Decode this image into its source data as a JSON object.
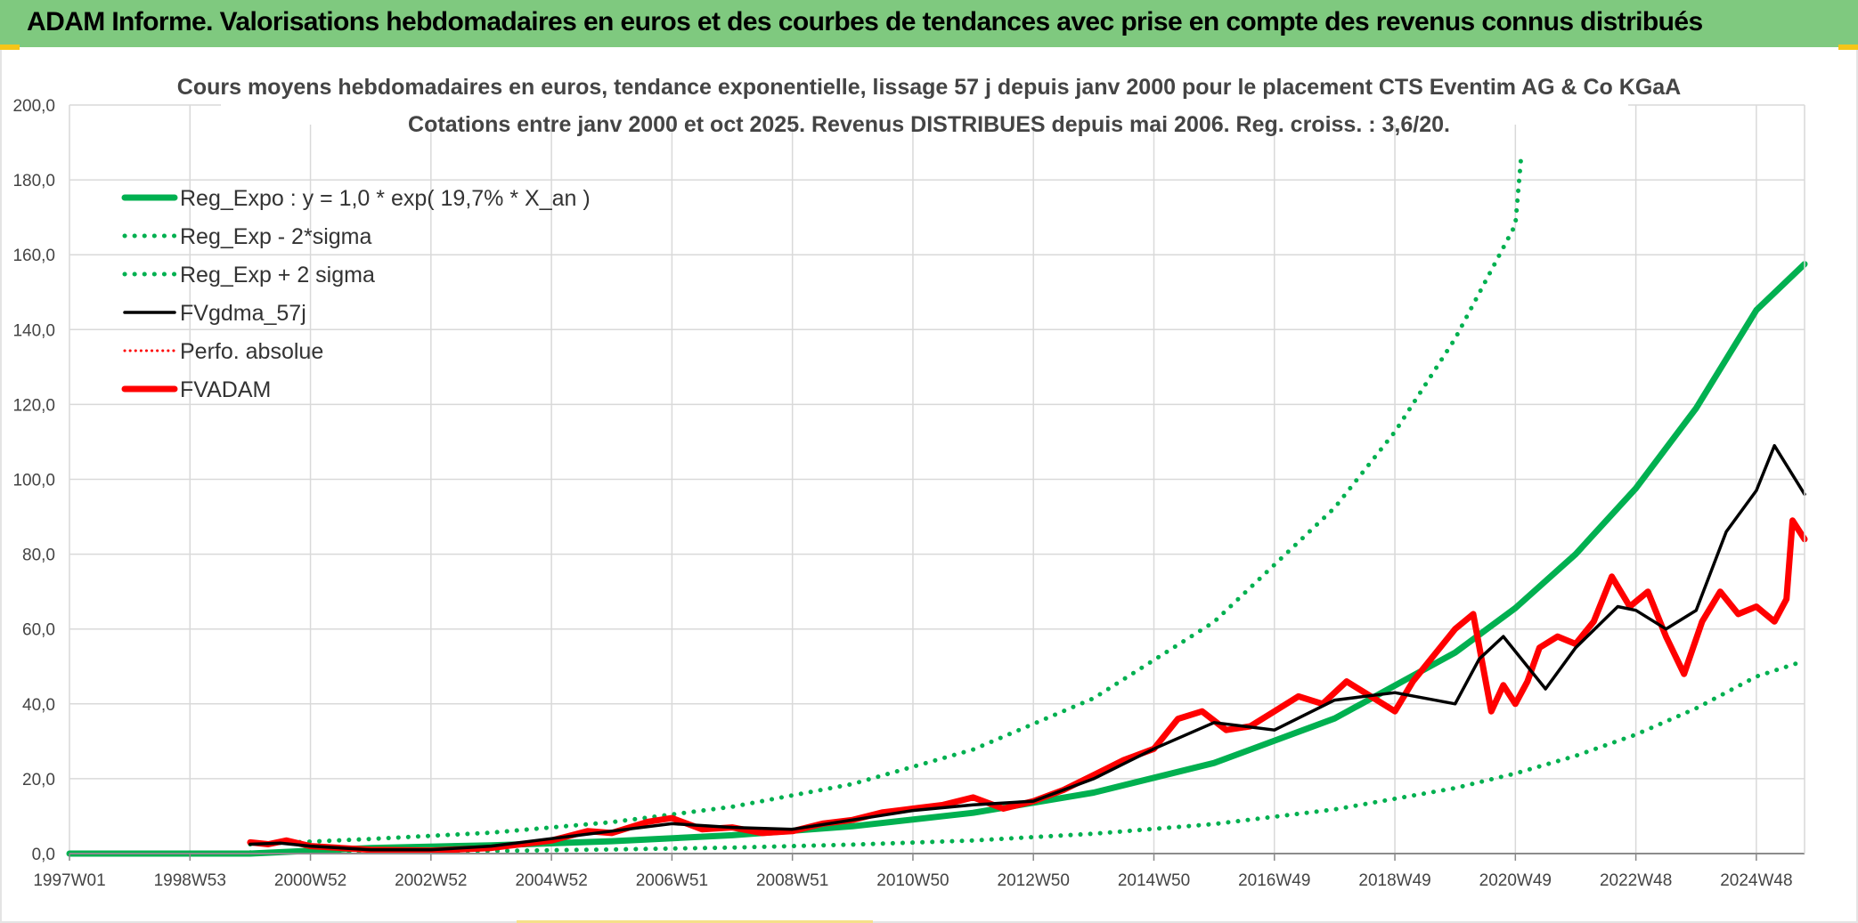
{
  "header": {
    "title": "ADAM Informe. Valorisations hebdomadaires en euros et des courbes de tendances avec prise en compte des revenus connus distribués"
  },
  "colors": {
    "header_bg": "#7fc97f",
    "green": "#00b050",
    "red": "#ff0000",
    "black": "#000000",
    "grid": "#d9d9d9"
  },
  "chart_data": {
    "type": "line",
    "title_line1": "Cours moyens hebdomadaires en euros, tendance exponentielle, lissage 57 j depuis janv 2000 pour le placement CTS Eventim AG & Co KGaA",
    "title_line2": "Cotations entre janv 2000 et oct 2025. Revenus DISTRIBUES depuis mai 2006. Reg. croiss. : 3,6/20.",
    "ylim": [
      0,
      200
    ],
    "yticks": [
      "0,0",
      "20,0",
      "40,0",
      "60,0",
      "80,0",
      "100,0",
      "120,0",
      "140,0",
      "160,0",
      "180,0",
      "200,0"
    ],
    "xlim": [
      1997.0,
      2025.8
    ],
    "xticks": [
      {
        "label": "1997W01",
        "x": 1997.0
      },
      {
        "label": "1998W53",
        "x": 1999.0
      },
      {
        "label": "2000W52",
        "x": 2001.0
      },
      {
        "label": "2002W52",
        "x": 2003.0
      },
      {
        "label": "2004W52",
        "x": 2005.0
      },
      {
        "label": "2006W51",
        "x": 2007.0
      },
      {
        "label": "2008W51",
        "x": 2009.0
      },
      {
        "label": "2010W50",
        "x": 2011.0
      },
      {
        "label": "2012W50",
        "x": 2013.0
      },
      {
        "label": "2014W50",
        "x": 2015.0
      },
      {
        "label": "2016W49",
        "x": 2017.0
      },
      {
        "label": "2018W49",
        "x": 2019.0
      },
      {
        "label": "2020W49",
        "x": 2021.0
      },
      {
        "label": "2022W48",
        "x": 2023.0
      },
      {
        "label": "2024W48",
        "x": 2025.0
      }
    ],
    "legend": {
      "position": "top-left",
      "entries": [
        {
          "label": "Reg_Expo : y = 1,0 * exp( 19,7% *  X_an )",
          "color": "#00b050",
          "style": "solid-thick"
        },
        {
          "label": "Reg_Exp - 2*sigma",
          "color": "#00b050",
          "style": "dotted"
        },
        {
          "label": "Reg_Exp + 2 sigma",
          "color": "#00b050",
          "style": "dotted"
        },
        {
          "label": "FVgdma_57j",
          "color": "#000000",
          "style": "solid"
        },
        {
          "label": "Perfo. absolue",
          "color": "#ff0000",
          "style": "dotted-thin"
        },
        {
          "label": "FVADAM",
          "color": "#ff0000",
          "style": "solid-thick"
        }
      ]
    },
    "series": [
      {
        "name": "Reg_Expo : y = 1,0 * exp( 19,7% *  X_an )",
        "x": [
          1997.0,
          2000.0,
          2002.0,
          2004.0,
          2006.0,
          2008.0,
          2010.0,
          2012.0,
          2014.0,
          2016.0,
          2018.0,
          2020.0,
          2021.0,
          2022.0,
          2023.0,
          2024.0,
          2025.0,
          2025.8
        ],
        "y": [
          0,
          0,
          1.5,
          2.2,
          3.3,
          4.9,
          7.3,
          10.9,
          16.3,
          24.2,
          36.1,
          53.7,
          65.6,
          80.0,
          97.6,
          119.0,
          145.2,
          157.5
        ]
      },
      {
        "name": "Reg_Exp - 2*sigma",
        "x": [
          2000.0,
          2002.0,
          2004.0,
          2006.0,
          2008.0,
          2010.0,
          2012.0,
          2014.0,
          2016.0,
          2018.0,
          2020.0,
          2021.0,
          2022.0,
          2023.0,
          2024.0,
          2025.0,
          2025.8
        ],
        "y": [
          0.3,
          0.5,
          0.7,
          1.1,
          1.6,
          2.4,
          3.5,
          5.3,
          7.9,
          11.8,
          17.5,
          21.4,
          26.1,
          31.8,
          38.8,
          47.3,
          51.5
        ]
      },
      {
        "name": "Reg_Exp + 2 sigma",
        "x": [
          2000.0,
          2002.0,
          2004.0,
          2006.0,
          2008.0,
          2010.0,
          2012.0,
          2014.0,
          2016.0,
          2018.0,
          2019.0,
          2020.0,
          2021.0,
          2021.1
        ],
        "y": [
          2.5,
          3.9,
          5.6,
          8.4,
          12.5,
          18.6,
          27.8,
          41.5,
          61.9,
          92.4,
          112.7,
          137.6,
          168.0,
          187.0
        ]
      },
      {
        "name": "FVgdma_57j",
        "x": [
          2000.0,
          2000.5,
          2001.0,
          2002.0,
          2003.0,
          2004.0,
          2005.0,
          2006.0,
          2007.0,
          2008.0,
          2009.0,
          2010.0,
          2011.0,
          2012.0,
          2013.0,
          2014.0,
          2015.0,
          2016.0,
          2017.0,
          2018.0,
          2019.0,
          2020.0,
          2020.4,
          2020.8,
          2021.5,
          2022.0,
          2022.7,
          2023.0,
          2023.5,
          2024.0,
          2024.5,
          2025.0,
          2025.3,
          2025.8
        ],
        "y": [
          2.5,
          2.8,
          2.0,
          1.0,
          1.0,
          2.0,
          4.0,
          6.0,
          8.0,
          7.0,
          6.5,
          9.0,
          11.5,
          13.0,
          14.0,
          20.0,
          28.0,
          35.0,
          33.0,
          41.0,
          43.0,
          40.0,
          52.0,
          58.0,
          44.0,
          55.0,
          66.0,
          65.0,
          60.0,
          65.0,
          86.0,
          97.0,
          109.0,
          96.0
        ]
      },
      {
        "name": "FVADAM",
        "x": [
          2000.0,
          2000.3,
          2000.6,
          2001.0,
          2001.5,
          2002.0,
          2003.0,
          2004.0,
          2005.0,
          2005.6,
          2006.0,
          2006.6,
          2007.0,
          2007.5,
          2008.0,
          2008.5,
          2009.0,
          2009.5,
          2010.0,
          2010.5,
          2011.0,
          2011.5,
          2012.0,
          2012.5,
          2013.0,
          2013.5,
          2014.0,
          2014.5,
          2015.0,
          2015.4,
          2015.8,
          2016.2,
          2016.6,
          2017.0,
          2017.4,
          2017.8,
          2018.2,
          2018.6,
          2019.0,
          2019.3,
          2019.6,
          2020.0,
          2020.3,
          2020.6,
          2020.8,
          2021.0,
          2021.2,
          2021.4,
          2021.7,
          2022.0,
          2022.3,
          2022.6,
          2022.9,
          2023.2,
          2023.5,
          2023.8,
          2024.1,
          2024.4,
          2024.7,
          2025.0,
          2025.3,
          2025.5,
          2025.6,
          2025.8
        ],
        "y": [
          3.0,
          2.5,
          3.5,
          2.0,
          1.5,
          1.0,
          0.8,
          1.5,
          3.5,
          6.0,
          5.5,
          8.5,
          9.5,
          6.5,
          7.0,
          5.5,
          6.0,
          8.0,
          9.0,
          11.0,
          12.0,
          13.0,
          15.0,
          12.0,
          14.0,
          17.0,
          21.0,
          25.0,
          28.0,
          36.0,
          38.0,
          33.0,
          34.0,
          38.0,
          42.0,
          40.0,
          46.0,
          42.0,
          38.0,
          46.0,
          52.0,
          60.0,
          64.0,
          38.0,
          45.0,
          40.0,
          46.0,
          55.0,
          58.0,
          56.0,
          62.0,
          74.0,
          66.0,
          70.0,
          58.0,
          48.0,
          62.0,
          70.0,
          64.0,
          66.0,
          62.0,
          68.0,
          89.0,
          84.0
        ]
      }
    ]
  }
}
